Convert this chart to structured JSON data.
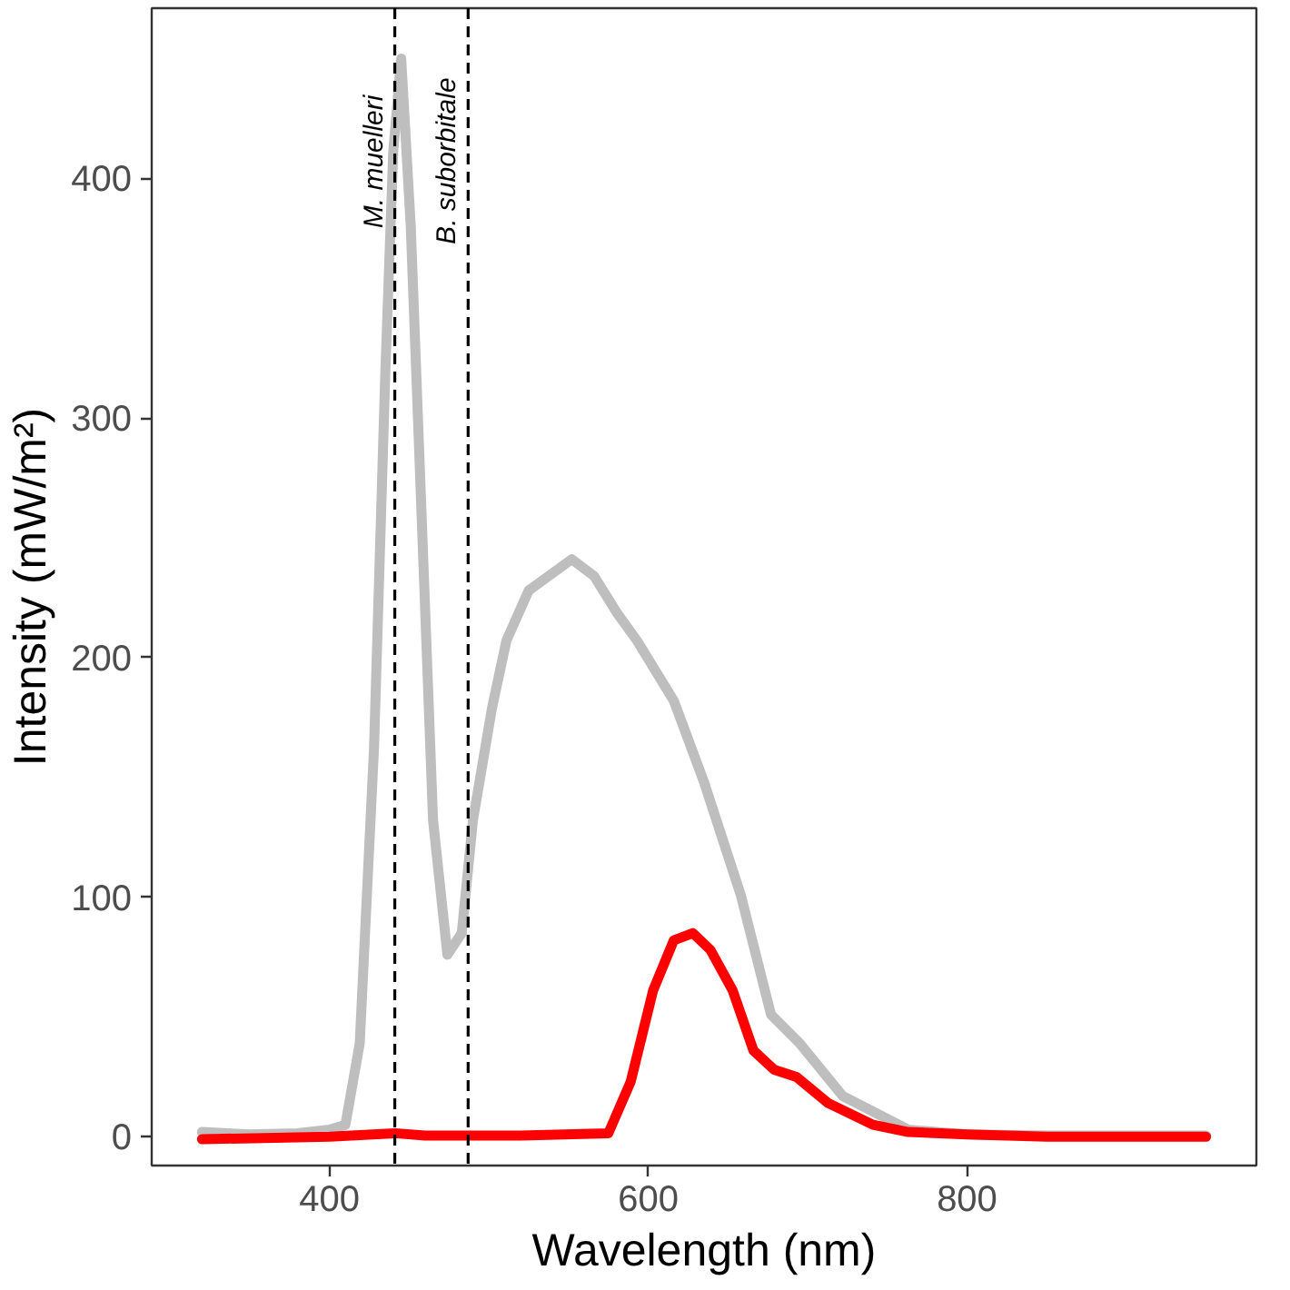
{
  "chart_data": {
    "type": "line",
    "xlabel": "Wavelength (nm)",
    "ylabel": "Intensity (mW/m²)",
    "xlim": [
      288.5,
      981.5
    ],
    "xticks": [
      400,
      600,
      800
    ],
    "ylim": [
      -12,
      471
    ],
    "yticks": [
      0,
      100,
      200,
      300,
      400
    ],
    "grid": false,
    "line_style": "solid",
    "marker": "none",
    "series": [
      {
        "color": "#bebebe",
        "x": [
          320,
          350,
          380,
          400,
          410,
          419,
          428,
          435,
          440,
          445,
          451,
          458,
          465,
          474,
          483,
          490,
          502,
          511,
          525,
          552,
          566,
          580,
          593,
          616,
          635,
          658,
          677,
          695,
          722,
          763,
          800,
          850,
          900,
          950
        ],
        "values": [
          2,
          1,
          1.5,
          3,
          5,
          39,
          163,
          318,
          411,
          450,
          380,
          256,
          132,
          76,
          85,
          132,
          179,
          207,
          228,
          241,
          234,
          219,
          207,
          182,
          148,
          101,
          51,
          39,
          17,
          3,
          1,
          0.5,
          0.5,
          0.5
        ]
      },
      {
        "color": "#ff0000",
        "x": [
          320,
          400,
          441,
          460,
          520,
          575,
          589,
          603,
          616,
          628,
          639,
          653,
          666,
          679,
          693,
          713,
          741,
          763,
          800,
          850,
          950
        ],
        "values": [
          -1,
          0,
          1.5,
          0.5,
          0.5,
          1.5,
          23,
          61,
          82,
          85,
          78,
          61,
          36,
          28,
          25,
          14,
          5,
          2,
          1,
          0,
          0
        ]
      }
    ],
    "ref_lines": [
      {
        "axis": "x",
        "value": 441,
        "label": "M. muelleri",
        "line_style": "dashed",
        "color": "#000000"
      },
      {
        "axis": "x",
        "value": 487,
        "label": "B. suborbitale",
        "line_style": "dashed",
        "color": "#000000"
      }
    ]
  }
}
